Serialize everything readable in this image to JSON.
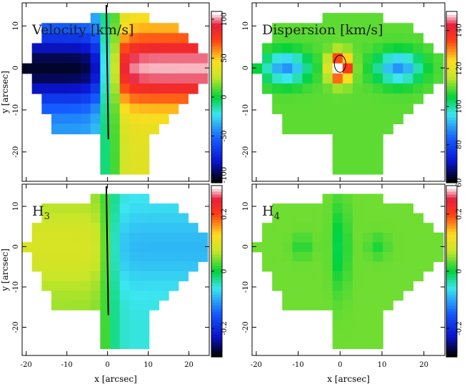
{
  "chart_data": [
    {
      "type": "heatmap",
      "title": "Velocity [km/s]",
      "xlabel": "",
      "ylabel": "y [arcsec]",
      "xlim": [
        -21,
        25
      ],
      "ylim": [
        -27,
        15.5
      ],
      "x_ticks": [
        "-20",
        "-10",
        "0",
        "10",
        "20"
      ],
      "y_ticks": [
        "-20",
        "-10",
        "0",
        "10"
      ],
      "colorbar": {
        "range": [
          -110,
          110
        ],
        "ticks": [
          "-100",
          "-50",
          "0",
          "50",
          "100"
        ],
        "colormap": "rainbow"
      },
      "field": "velocity: ~-100 left of x=0, ~+100 right, peaks along y~0"
    },
    {
      "type": "heatmap",
      "title": "Dispersion [km/s]",
      "xlabel": "",
      "ylabel": "",
      "xlim": [
        -21,
        25
      ],
      "ylim": [
        -27,
        15.5
      ],
      "x_ticks": [
        "-20",
        "-10",
        "0",
        "10",
        "20"
      ],
      "y_ticks": [
        "-20",
        "-10",
        "0",
        "10"
      ],
      "colorbar": {
        "range": [
          60,
          150
        ],
        "ticks": [
          "60",
          "80",
          "100",
          "120",
          "140"
        ],
        "colormap": "rainbow"
      },
      "field": "dispersion: central peak ~150, lobes ~90 along y~0, outskirts ~110"
    },
    {
      "type": "heatmap",
      "title": "H3",
      "xlabel": "x [arcsec]",
      "ylabel": "y [arcsec]",
      "xlim": [
        -21,
        25
      ],
      "ylim": [
        -27,
        15.5
      ],
      "x_ticks": [
        "-20",
        "-10",
        "0",
        "10",
        "20"
      ],
      "y_ticks": [
        "-20",
        "-10",
        "0",
        "10"
      ],
      "colorbar": {
        "range": [
          -0.3,
          0.3
        ],
        "ticks": [
          "-0.2",
          "0",
          "0.2"
        ],
        "colormap": "rainbow"
      },
      "field": "h3: ~+0.1 left of x=0, ~-0.1 right"
    },
    {
      "type": "heatmap",
      "title": "H4",
      "xlabel": "x [arcsec]",
      "ylabel": "",
      "xlim": [
        -21,
        25
      ],
      "ylim": [
        -27,
        15.5
      ],
      "x_ticks": [
        "-20",
        "-10",
        "0",
        "10",
        "20"
      ],
      "y_ticks": [
        "-20",
        "-10",
        "0",
        "10"
      ],
      "colorbar": {
        "range": [
          -0.3,
          0.3
        ],
        "ticks": [
          "-0.2",
          "0",
          "0.2"
        ],
        "colormap": "rainbow"
      },
      "field": "h4: ~0 to +0.05 overall, slightly negative near center"
    }
  ]
}
